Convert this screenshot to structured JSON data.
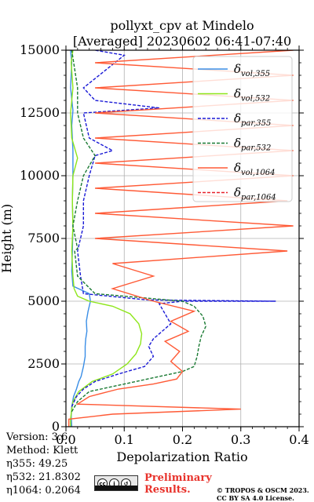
{
  "chart_data": {
    "type": "line",
    "title": "pollyxt_cpv at Mindelo",
    "subtitle": "[Averaged] 20230602 06:41-07:40",
    "xlabel": "Depolarization Ratio",
    "ylabel": "Height (m)",
    "xlim": [
      0.0,
      0.4
    ],
    "ylim": [
      0,
      15000
    ],
    "xticks": [
      "0.0",
      "0.1",
      "0.2",
      "0.3",
      "0.4"
    ],
    "yticks": [
      "0",
      "2500",
      "5000",
      "7500",
      "10000",
      "12500",
      "15000"
    ],
    "grid": true,
    "legend_position": "upper right",
    "series": [
      {
        "name": "δvol,355",
        "label_main": "δ",
        "label_sub": "vol,355",
        "color": "#3a8ee6",
        "style": "solid",
        "points": [
          [
            0.01,
            0
          ],
          [
            0.009,
            400
          ],
          [
            0.01,
            800
          ],
          [
            0.013,
            1200
          ],
          [
            0.018,
            1500
          ],
          [
            0.022,
            1800
          ],
          [
            0.026,
            2000
          ],
          [
            0.03,
            2400
          ],
          [
            0.033,
            2800
          ],
          [
            0.033,
            3200
          ],
          [
            0.034,
            3500
          ],
          [
            0.036,
            3800
          ],
          [
            0.035,
            4200
          ],
          [
            0.038,
            4600
          ],
          [
            0.042,
            5000
          ],
          [
            0.04,
            5300
          ],
          [
            0.012,
            5600
          ],
          [
            0.01,
            6200
          ],
          [
            0.011,
            7000
          ],
          [
            0.012,
            8000
          ],
          [
            0.011,
            9000
          ],
          [
            0.012,
            10000
          ],
          [
            0.012,
            11000
          ],
          [
            0.01,
            12000
          ],
          [
            0.012,
            12600
          ],
          [
            0.008,
            13500
          ],
          [
            0.01,
            14500
          ],
          [
            0.008,
            15000
          ]
        ]
      },
      {
        "name": "δvol,532",
        "label_main": "δ",
        "label_sub": "vol,532",
        "color": "#8ee61a",
        "style": "solid",
        "points": [
          [
            0.008,
            0
          ],
          [
            0.008,
            300
          ],
          [
            0.01,
            700
          ],
          [
            0.012,
            1000
          ],
          [
            0.022,
            1400
          ],
          [
            0.045,
            1800
          ],
          [
            0.08,
            2100
          ],
          [
            0.105,
            2500
          ],
          [
            0.12,
            2900
          ],
          [
            0.128,
            3300
          ],
          [
            0.13,
            3700
          ],
          [
            0.125,
            4100
          ],
          [
            0.11,
            4500
          ],
          [
            0.08,
            4800
          ],
          [
            0.04,
            5000
          ],
          [
            0.02,
            5200
          ],
          [
            0.014,
            5500
          ],
          [
            0.012,
            6000
          ],
          [
            0.01,
            7000
          ],
          [
            0.012,
            8000
          ],
          [
            0.011,
            9000
          ],
          [
            0.012,
            10000
          ],
          [
            0.02,
            10700
          ],
          [
            0.01,
            11500
          ],
          [
            0.008,
            12500
          ],
          [
            0.012,
            13500
          ],
          [
            0.009,
            14500
          ],
          [
            0.012,
            15000
          ]
        ]
      },
      {
        "name": "δpar,355",
        "label_main": "δ",
        "label_sub": "par,355",
        "color": "#1a1ad6",
        "style": "dashed",
        "points": [
          [
            0.01,
            800
          ],
          [
            0.018,
            1200
          ],
          [
            0.03,
            1500
          ],
          [
            0.05,
            1800
          ],
          [
            0.09,
            2100
          ],
          [
            0.135,
            2400
          ],
          [
            0.15,
            2800
          ],
          [
            0.142,
            3200
          ],
          [
            0.15,
            3500
          ],
          [
            0.165,
            3800
          ],
          [
            0.18,
            4100
          ],
          [
            0.17,
            4500
          ],
          [
            0.16,
            4900
          ],
          [
            0.2,
            5000
          ],
          [
            0.26,
            5000
          ],
          [
            0.36,
            5000
          ],
          [
            0.14,
            5050
          ],
          [
            0.03,
            5300
          ],
          [
            0.025,
            6000
          ],
          [
            0.02,
            7000
          ],
          [
            0.03,
            8000
          ],
          [
            0.03,
            9000
          ],
          [
            0.04,
            10000
          ],
          [
            0.05,
            10800
          ],
          [
            0.08,
            11000
          ],
          [
            0.04,
            11500
          ],
          [
            0.03,
            12500
          ],
          [
            0.16,
            12700
          ],
          [
            0.05,
            13000
          ],
          [
            0.03,
            13500
          ],
          [
            0.1,
            14800
          ],
          [
            0.05,
            15000
          ]
        ]
      },
      {
        "name": "δpar,532",
        "label_main": "δ",
        "label_sub": "par,532",
        "color": "#1a7a33",
        "style": "dashed",
        "points": [
          [
            0.01,
            600
          ],
          [
            0.02,
            1000
          ],
          [
            0.04,
            1400
          ],
          [
            0.08,
            1600
          ],
          [
            0.12,
            1800
          ],
          [
            0.16,
            2000
          ],
          [
            0.2,
            2200
          ],
          [
            0.22,
            2400
          ],
          [
            0.225,
            2800
          ],
          [
            0.228,
            3200
          ],
          [
            0.232,
            3600
          ],
          [
            0.24,
            4000
          ],
          [
            0.235,
            4400
          ],
          [
            0.22,
            4800
          ],
          [
            0.2,
            5000
          ],
          [
            0.15,
            5100
          ],
          [
            0.05,
            5300
          ],
          [
            0.02,
            6000
          ],
          [
            0.015,
            7000
          ],
          [
            0.02,
            7100
          ],
          [
            0.012,
            8000
          ],
          [
            0.02,
            9000
          ],
          [
            0.03,
            10000
          ],
          [
            0.05,
            10800
          ],
          [
            0.03,
            11500
          ],
          [
            0.02,
            12500
          ],
          [
            0.02,
            13500
          ],
          [
            0.01,
            15000
          ]
        ]
      },
      {
        "name": "δvol,1064",
        "label_main": "δ",
        "label_sub": "vol,1064",
        "color": "#ff5a36",
        "style": "solid",
        "points": [
          [
            0.005,
            0
          ],
          [
            0.005,
            300
          ],
          [
            0.08,
            500
          ],
          [
            0.3,
            700
          ],
          [
            0.02,
            900
          ],
          [
            0.04,
            1200
          ],
          [
            0.09,
            1500
          ],
          [
            0.15,
            1700
          ],
          [
            0.19,
            1900
          ],
          [
            0.2,
            2200
          ],
          [
            0.18,
            2600
          ],
          [
            0.195,
            3000
          ],
          [
            0.17,
            3400
          ],
          [
            0.21,
            3800
          ],
          [
            0.18,
            4200
          ],
          [
            0.22,
            4600
          ],
          [
            0.15,
            5000
          ],
          [
            0.08,
            5500
          ],
          [
            0.15,
            6000
          ],
          [
            0.08,
            6500
          ],
          [
            0.38,
            7000
          ],
          [
            0.05,
            7500
          ],
          [
            0.39,
            8000
          ],
          [
            0.05,
            8500
          ],
          [
            0.38,
            9000
          ],
          [
            0.05,
            9500
          ],
          [
            0.39,
            10000
          ],
          [
            0.05,
            10500
          ],
          [
            0.39,
            11000
          ],
          [
            0.05,
            11500
          ],
          [
            0.39,
            12000
          ],
          [
            0.05,
            12500
          ],
          [
            0.39,
            13000
          ],
          [
            0.05,
            13500
          ],
          [
            0.39,
            14000
          ],
          [
            0.05,
            14500
          ],
          [
            0.39,
            15000
          ]
        ]
      },
      {
        "name": "δpar,1064",
        "label_main": "δ",
        "label_sub": "par,1064",
        "color": "#e8202a",
        "style": "dashed",
        "points": []
      }
    ]
  },
  "info": {
    "version": "Version: 3.6",
    "method": "Method: Klett",
    "eta355": "η355:  49.25",
    "eta532": "η532: 21.8302",
    "eta1064": "η1064: 0.2064"
  },
  "footer": {
    "preliminary_line1": "Preliminary",
    "preliminary_line2": "Results.",
    "copyright_line1": "© TROPOS & OSCM 2023.",
    "copyright_line2": "CC BY SA 4.0 License.",
    "cc_icons": [
      "cc",
      "by",
      "sa"
    ]
  }
}
